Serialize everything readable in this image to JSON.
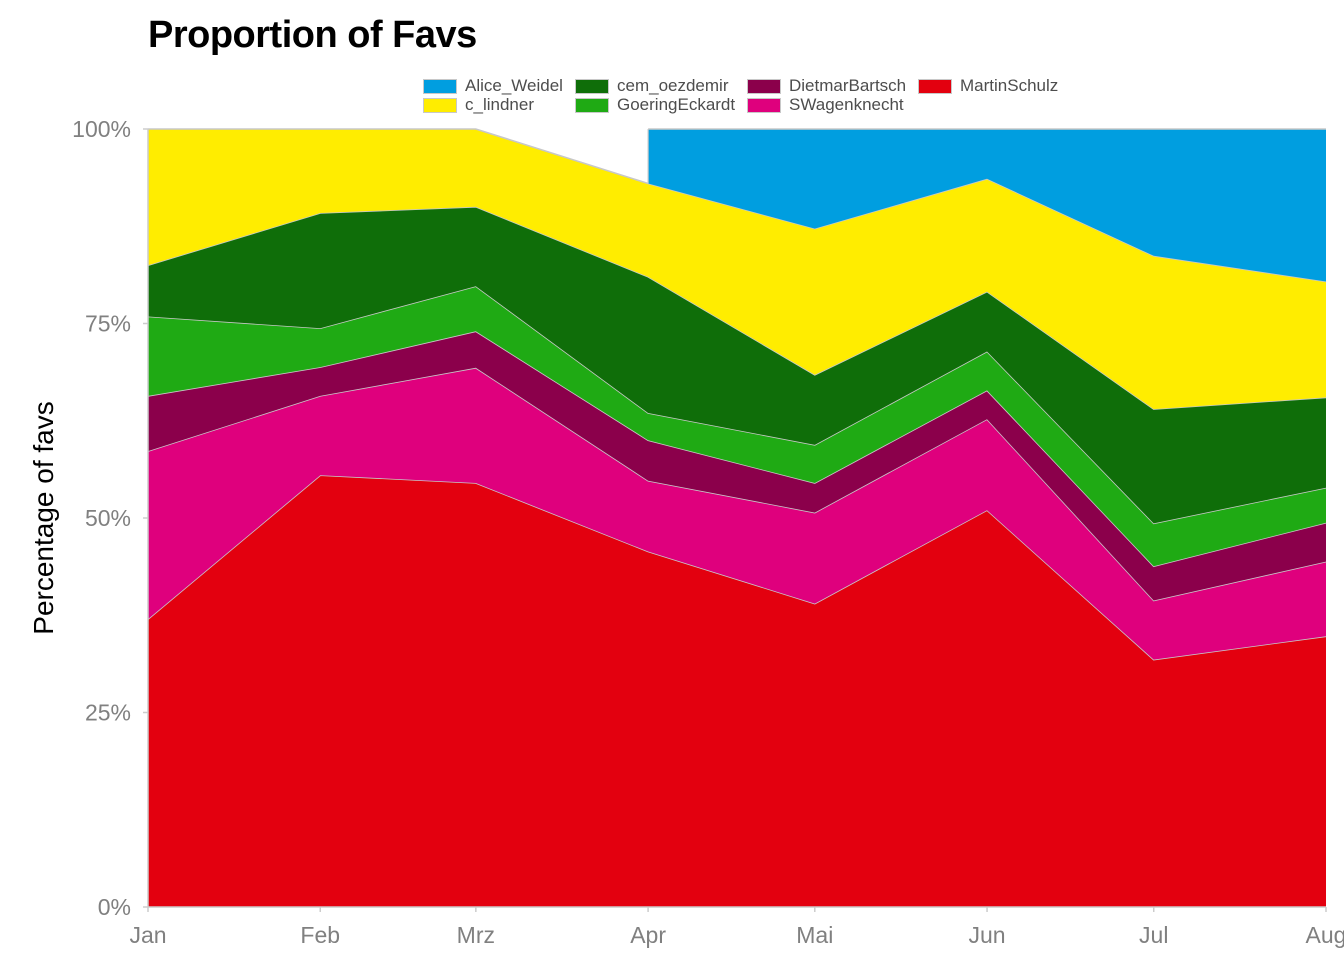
{
  "title": "Proportion of Favs",
  "chart_data": {
    "type": "area",
    "stacked": true,
    "title": "Proportion of Favs",
    "xlabel": "",
    "ylabel": "Percentage of favs",
    "x": [
      "Jan",
      "Feb",
      "Mrz",
      "Apr",
      "Mai",
      "Jun",
      "Jul",
      "Aug"
    ],
    "x_positions_days": [
      0,
      31,
      59,
      90,
      120,
      151,
      181,
      212
    ],
    "ylim": [
      0,
      1
    ],
    "y_ticks": [
      "0%",
      "25%",
      "50%",
      "75%",
      "100%"
    ],
    "y_tick_values": [
      0,
      0.25,
      0.5,
      0.75,
      1.0
    ],
    "legend_position": "top",
    "grid": false,
    "series": [
      {
        "name": "MartinSchulz",
        "color": "#e3000f",
        "values": [
          0.37,
          0.555,
          0.545,
          0.457,
          0.39,
          0.51,
          0.318,
          0.348
        ]
      },
      {
        "name": "SWagenknecht",
        "color": "#df007d",
        "values": [
          0.216,
          0.102,
          0.148,
          0.091,
          0.117,
          0.117,
          0.076,
          0.096
        ]
      },
      {
        "name": "DietmarBartsch",
        "color": "#8b004b",
        "values": [
          0.071,
          0.037,
          0.047,
          0.052,
          0.038,
          0.037,
          0.044,
          0.05
        ]
      },
      {
        "name": "GoeringEckardt",
        "color": "#1faa14",
        "values": [
          0.102,
          0.05,
          0.058,
          0.035,
          0.049,
          0.05,
          0.055,
          0.045
        ]
      },
      {
        "name": "cem_oezdemir",
        "color": "#0f6e09",
        "values": [
          0.066,
          0.148,
          0.102,
          0.175,
          0.09,
          0.077,
          0.147,
          0.116
        ]
      },
      {
        "name": "c_lindner",
        "color": "#ffed00",
        "values": [
          0.175,
          0.108,
          0.1,
          0.12,
          0.188,
          0.145,
          0.197,
          0.149
        ]
      },
      {
        "name": "Alice_Weidel",
        "color": "#009ee0",
        "values": [
          null,
          null,
          null,
          0.07,
          0.128,
          0.064,
          0.163,
          0.196
        ]
      }
    ]
  },
  "legend": [
    {
      "name": "Alice_Weidel",
      "color": "#009ee0"
    },
    {
      "name": "c_lindner",
      "color": "#ffed00"
    },
    {
      "name": "cem_oezdemir",
      "color": "#0f6e09"
    },
    {
      "name": "GoeringEckardt",
      "color": "#1faa14"
    },
    {
      "name": "DietmarBartsch",
      "color": "#8b004b"
    },
    {
      "name": "SWagenknecht",
      "color": "#df007d"
    },
    {
      "name": "MartinSchulz",
      "color": "#e3000f"
    }
  ]
}
